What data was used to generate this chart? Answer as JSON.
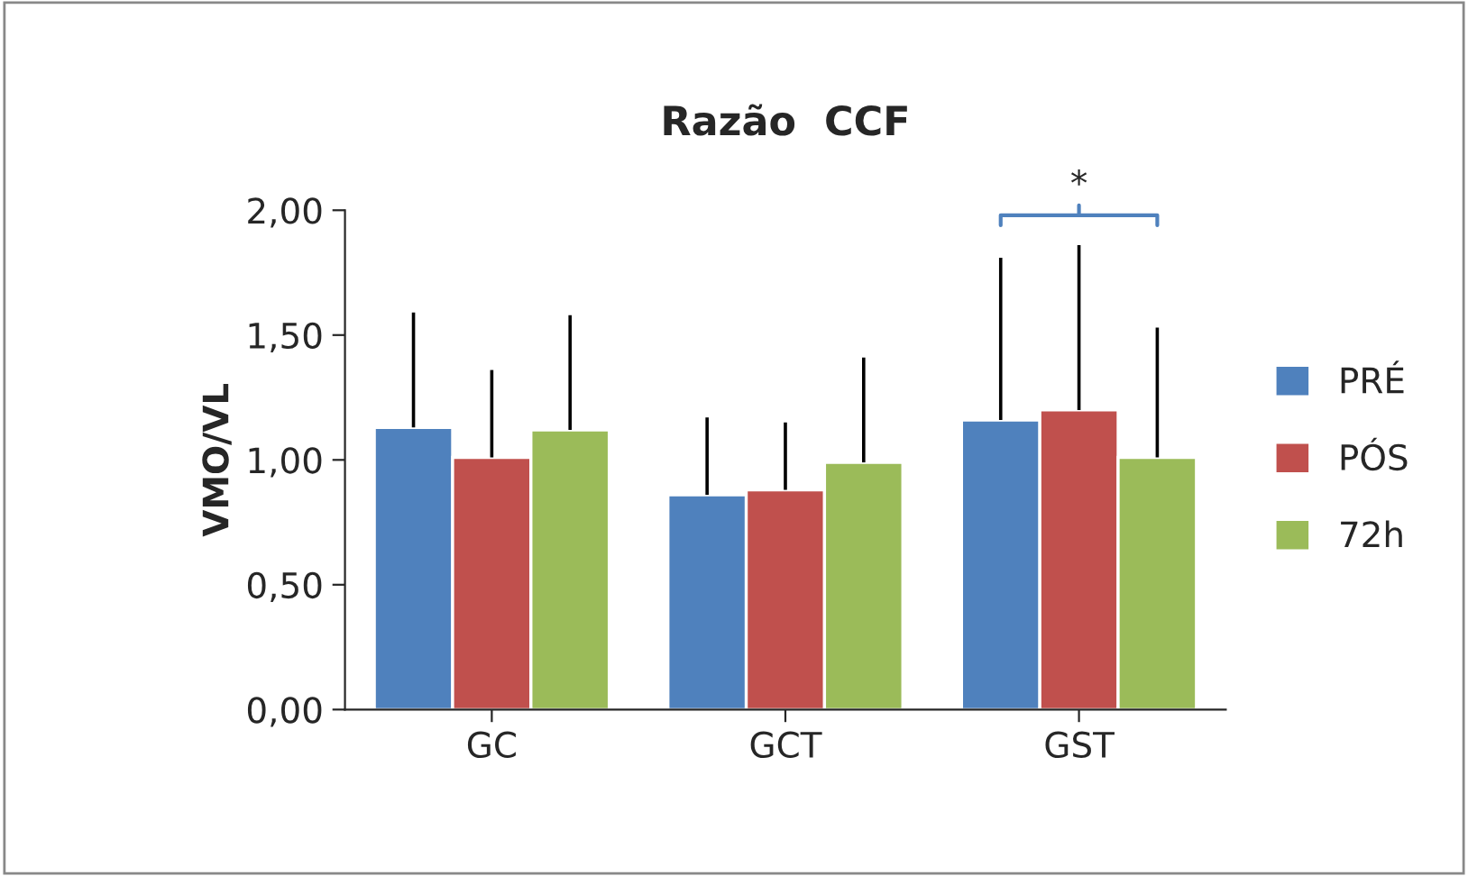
{
  "chart_data": {
    "type": "bar",
    "title": "Razão  CCF",
    "ylabel": "VMO/VL",
    "categories": [
      "GC",
      "GCT",
      "GST"
    ],
    "series": [
      {
        "name": "PRÉ",
        "color": "#4f81bd",
        "values": [
          1.13,
          0.86,
          1.16
        ],
        "errors": [
          [
            1.13,
            1.59
          ],
          [
            0.86,
            1.17
          ],
          [
            1.16,
            1.81
          ]
        ]
      },
      {
        "name": "PÓS",
        "color": "#c0504d",
        "values": [
          1.01,
          0.88,
          1.2
        ],
        "errors": [
          [
            1.01,
            1.36
          ],
          [
            0.88,
            1.15
          ],
          [
            1.2,
            1.86
          ]
        ]
      },
      {
        "name": "72h",
        "color": "#9bbb59",
        "values": [
          1.12,
          0.99,
          1.01
        ],
        "errors": [
          [
            1.12,
            1.58
          ],
          [
            0.99,
            1.41
          ],
          [
            1.01,
            1.53
          ]
        ]
      }
    ],
    "ylim": [
      0,
      2
    ],
    "yticks": [
      {
        "value": 0,
        "label": "0,00"
      },
      {
        "value": 0.5,
        "label": "0,50"
      },
      {
        "value": 1,
        "label": "1,00"
      },
      {
        "value": 1.5,
        "label": "1,50"
      },
      {
        "value": 2,
        "label": "2,00"
      }
    ],
    "grid": false,
    "legend": "right",
    "annotations": [
      "*"
    ]
  }
}
